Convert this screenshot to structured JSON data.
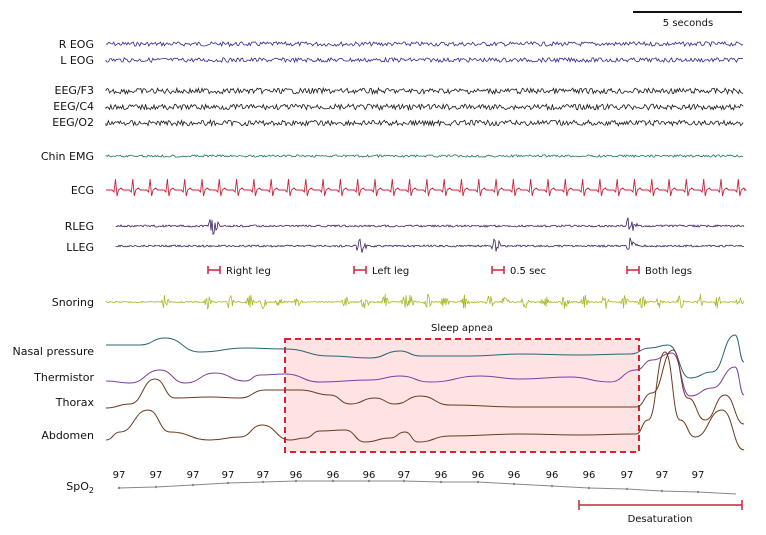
{
  "scale_bar": {
    "label": "5 seconds"
  },
  "channels": {
    "reog": {
      "label": "R EOG",
      "color": "#2e2a8a"
    },
    "leog": {
      "label": "L EOG",
      "color": "#2e2a8a"
    },
    "f3": {
      "label": "EEG/F3",
      "color": "#1a1a1a"
    },
    "c4": {
      "label": "EEG/C4",
      "color": "#1a1a1a"
    },
    "o2": {
      "label": "EEG/O2",
      "color": "#1a1a1a"
    },
    "chin": {
      "label": "Chin EMG",
      "color": "#1f7a4a"
    },
    "ecg": {
      "label": "ECG",
      "color": "#c8243c"
    },
    "rleg": {
      "label": "RLEG",
      "color": "#3a1f5c"
    },
    "lleg": {
      "label": "LLEG",
      "color": "#3a1f5c"
    },
    "snoring": {
      "label": "Snoring",
      "color": "#a8b828"
    },
    "nasal": {
      "label": "Nasal pressure",
      "color": "#2a6470"
    },
    "thermistor": {
      "label": "Thermistor",
      "color": "#7a3fa0"
    },
    "thorax": {
      "label": "Thorax",
      "color": "#6b3a1f"
    },
    "abdomen": {
      "label": "Abdomen",
      "color": "#6b3a1f"
    }
  },
  "leg_annotations": [
    "Right leg",
    "Left leg",
    "0.5 sec",
    "Both legs"
  ],
  "apnea": {
    "label": "Sleep apnea",
    "border_color": "#e0202c",
    "fill_color": "#fde3e3"
  },
  "spo2": {
    "label_main": "SpO",
    "label_sub": "2",
    "values": [
      "97",
      "97",
      "97",
      "97",
      "97",
      "96",
      "96",
      "96",
      "97",
      "96",
      "96",
      "96",
      "96",
      "96",
      "97",
      "97",
      "97"
    ],
    "color": "#888888"
  },
  "desaturation": {
    "label": "Desaturation",
    "color": "#c8243c"
  },
  "marker_color": "#c8243c"
}
